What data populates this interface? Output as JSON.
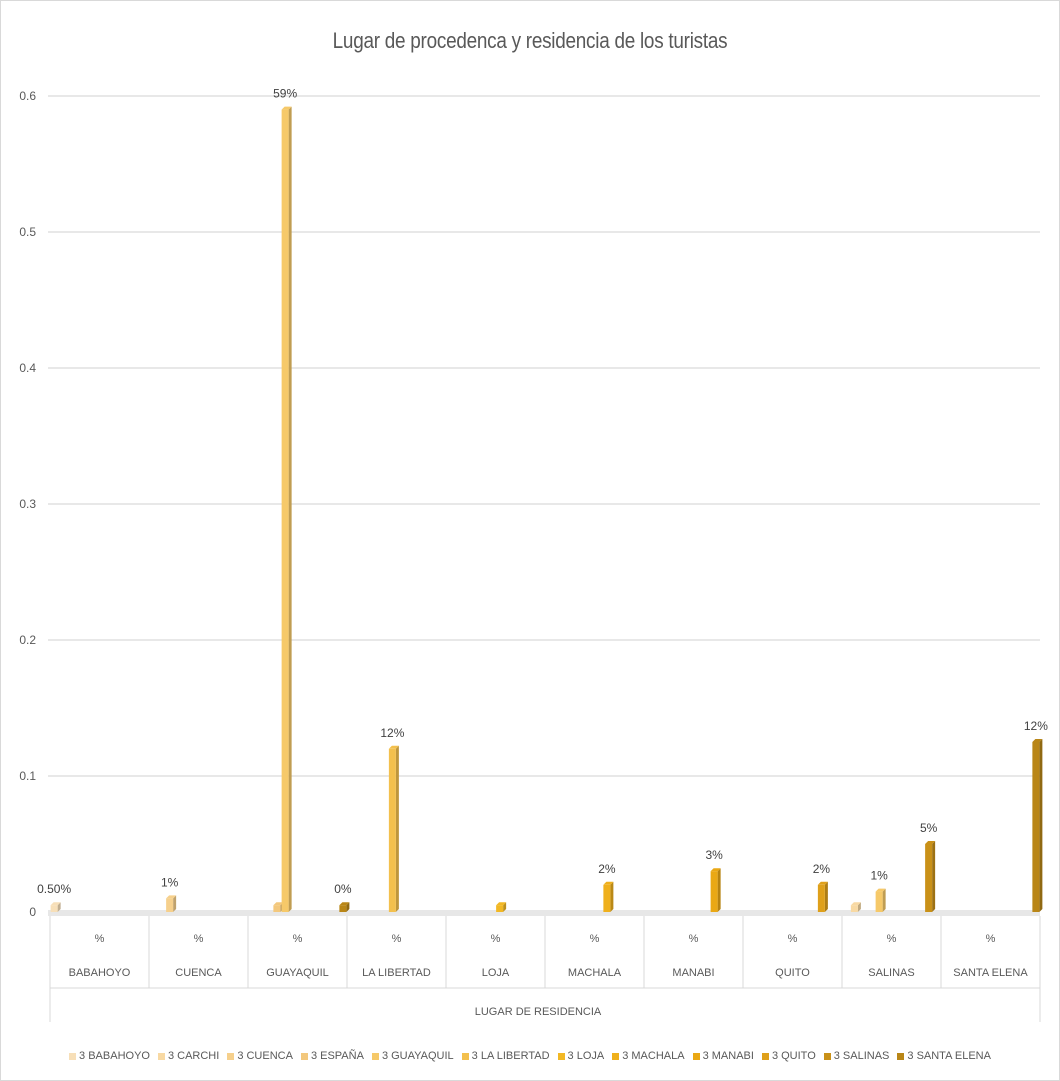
{
  "chart_data": {
    "type": "bar",
    "title": "Lugar de procedenca y residencia de los turistas",
    "xlabel": "LUGAR DE RESIDENCIA",
    "ylabel": "",
    "ylim": [
      0,
      0.6
    ],
    "yticks": [
      "0",
      "0.1",
      "0.2",
      "0.3",
      "0.4",
      "0.5",
      "0.6"
    ],
    "grid": true,
    "legend_position": "bottom",
    "categories": [
      "BABAHOYO",
      "CUENCA",
      "GUAYAQUIL",
      "LA LIBERTAD",
      "LOJA",
      "MACHALA",
      "MANABI",
      "QUITO",
      "SALINAS",
      "SANTA ELENA"
    ],
    "subcategories": [
      "%",
      "%",
      "%",
      "%",
      "%",
      "%",
      "%",
      "%",
      "%",
      "%"
    ],
    "series": [
      {
        "name": "3 BABAHOYO",
        "color": "#f7dfb8",
        "values": [
          0.005,
          null,
          null,
          null,
          null,
          null,
          null,
          null,
          null,
          null
        ]
      },
      {
        "name": "3 CARCHI",
        "color": "#f8d9a3",
        "values": [
          null,
          null,
          null,
          null,
          null,
          null,
          null,
          null,
          0.005,
          null
        ]
      },
      {
        "name": "3 CUENCA",
        "color": "#f6d08c",
        "values": [
          null,
          0.01,
          null,
          null,
          null,
          null,
          null,
          null,
          null,
          null
        ]
      },
      {
        "name": "3 ESPAÑA",
        "color": "#f3c87d",
        "values": [
          null,
          null,
          0.005,
          null,
          null,
          null,
          null,
          null,
          null,
          null
        ]
      },
      {
        "name": "3 GUAYAQUIL",
        "color": "#f6c969",
        "values": [
          null,
          null,
          0.59,
          null,
          null,
          null,
          null,
          null,
          0.015,
          null
        ]
      },
      {
        "name": "3 LA LIBERTAD",
        "color": "#f3c04d",
        "values": [
          null,
          null,
          null,
          0.12,
          null,
          null,
          null,
          null,
          null,
          null
        ]
      },
      {
        "name": "3 LOJA",
        "color": "#f2b824",
        "values": [
          null,
          null,
          null,
          null,
          0.005,
          null,
          null,
          null,
          null,
          null
        ]
      },
      {
        "name": "3 MACHALA",
        "color": "#efb01c",
        "values": [
          null,
          null,
          null,
          null,
          null,
          0.02,
          null,
          null,
          null,
          null
        ]
      },
      {
        "name": "3 MANABI",
        "color": "#eaa814",
        "values": [
          null,
          null,
          null,
          null,
          null,
          null,
          0.03,
          null,
          null,
          null
        ]
      },
      {
        "name": "3 QUITO",
        "color": "#dfa01a",
        "values": [
          null,
          null,
          null,
          null,
          null,
          null,
          null,
          0.02,
          null,
          null
        ]
      },
      {
        "name": "3 SALINAS",
        "color": "#c99118",
        "values": [
          null,
          null,
          null,
          null,
          null,
          null,
          null,
          null,
          0.05,
          null
        ]
      },
      {
        "name": "3 SANTA ELENA",
        "color": "#b98617",
        "values": [
          null,
          null,
          0.005,
          null,
          null,
          null,
          null,
          null,
          null,
          0.125
        ]
      }
    ],
    "data_labels": [
      {
        "category": "BABAHOYO",
        "series": "3 BABAHOYO",
        "text": "0.50%"
      },
      {
        "category": "CUENCA",
        "series": "3 CUENCA",
        "text": "1%"
      },
      {
        "category": "GUAYAQUIL",
        "series": "3 GUAYAQUIL",
        "text": "59%"
      },
      {
        "category": "GUAYAQUIL",
        "series": "3 SANTA ELENA",
        "text": "0%"
      },
      {
        "category": "LA LIBERTAD",
        "series": "3 LA LIBERTAD",
        "text": "12%"
      },
      {
        "category": "MACHALA",
        "series": "3 MACHALA",
        "text": "2%"
      },
      {
        "category": "MANABI",
        "series": "3 MANABI",
        "text": "3%"
      },
      {
        "category": "QUITO",
        "series": "3 QUITO",
        "text": "2%"
      },
      {
        "category": "SALINAS",
        "series": "3 GUAYAQUIL",
        "text": "1%"
      },
      {
        "category": "SALINAS",
        "series": "3 SALINAS",
        "text": "5%"
      },
      {
        "category": "SANTA ELENA",
        "series": "3 SANTA ELENA",
        "text": "12%"
      }
    ]
  }
}
